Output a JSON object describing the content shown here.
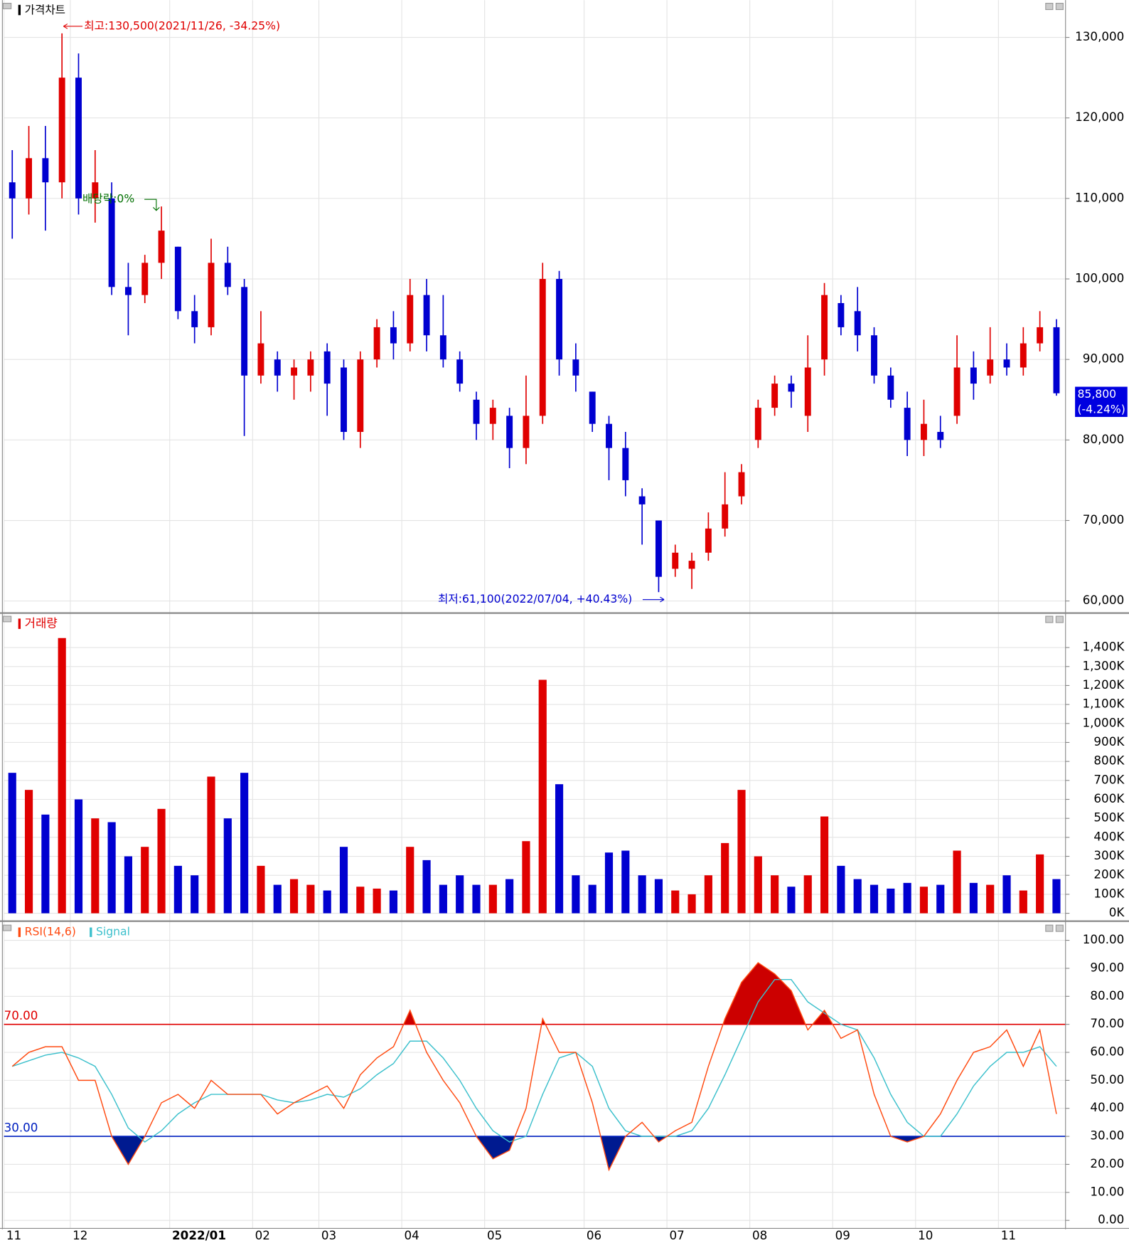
{
  "chart_data": [
    {
      "type": "candlestick",
      "title": "가격차트",
      "open": [
        112000,
        110000,
        115000,
        112000,
        125000,
        110000,
        110000,
        99000,
        98000,
        102000,
        104000,
        96000,
        94000,
        102000,
        99000,
        88000,
        90000,
        88000,
        88000,
        91000,
        89000,
        81000,
        90000,
        94000,
        92000,
        98000,
        93000,
        90000,
        85000,
        82000,
        83000,
        79000,
        83000,
        100000,
        90000,
        86000,
        82000,
        79000,
        73000,
        70000,
        64000,
        64000,
        66000,
        69000,
        73000,
        80000,
        84000,
        87000,
        83000,
        90000,
        97000,
        96000,
        93000,
        88000,
        84000,
        80000,
        81000,
        83000,
        89000,
        88000,
        90000,
        89000,
        92000,
        94000
      ],
      "high": [
        116000,
        119000,
        119000,
        130500,
        128000,
        116000,
        112000,
        102000,
        103000,
        109000,
        104000,
        98000,
        105000,
        104000,
        100000,
        96000,
        91000,
        90000,
        91000,
        92000,
        90000,
        91000,
        95000,
        96000,
        100000,
        100000,
        98000,
        91000,
        86000,
        85000,
        84000,
        88000,
        102000,
        101000,
        92000,
        86000,
        83000,
        81000,
        74000,
        70000,
        67000,
        66000,
        71000,
        76000,
        77000,
        85000,
        88000,
        88000,
        93000,
        99500,
        98000,
        99000,
        94000,
        89000,
        86000,
        85000,
        83000,
        93000,
        91000,
        94000,
        92000,
        94000,
        96000,
        95000
      ],
      "low": [
        105000,
        108000,
        106000,
        110000,
        108000,
        107000,
        98000,
        93000,
        97000,
        100000,
        95000,
        92000,
        93000,
        98000,
        80500,
        87000,
        86000,
        85000,
        86000,
        83000,
        80000,
        79000,
        89000,
        90000,
        91000,
        91000,
        89000,
        86000,
        80000,
        80000,
        76500,
        77000,
        82000,
        88000,
        86000,
        81000,
        75000,
        73000,
        67000,
        61100,
        63000,
        61500,
        65000,
        68000,
        72000,
        79000,
        83000,
        84000,
        81000,
        88000,
        93000,
        91000,
        87000,
        84000,
        78000,
        78000,
        79000,
        82000,
        85000,
        87000,
        88000,
        88000,
        91000,
        85500
      ],
      "close": [
        110000,
        115000,
        112000,
        125000,
        110000,
        112000,
        99000,
        98000,
        102000,
        106000,
        96000,
        94000,
        102000,
        99000,
        88000,
        92000,
        88000,
        89000,
        90000,
        87000,
        81000,
        90000,
        94000,
        92000,
        98000,
        93000,
        90000,
        87000,
        82000,
        84000,
        79000,
        83000,
        100000,
        90000,
        88000,
        82000,
        79000,
        75000,
        72000,
        63000,
        66000,
        65000,
        69000,
        72000,
        76000,
        84000,
        87000,
        86000,
        89000,
        98000,
        94000,
        93000,
        88000,
        85000,
        80000,
        82000,
        80000,
        89000,
        87000,
        90000,
        89000,
        92000,
        94000,
        85800
      ],
      "up_color": "#e00000",
      "down_color": "#0000d0",
      "ylim": [
        58700,
        134340
      ],
      "yticks": [
        {
          "value": 60000,
          "label": "60,000"
        },
        {
          "value": 70000,
          "label": "70,000"
        },
        {
          "value": 80000,
          "label": "80,000"
        },
        {
          "value": 90000,
          "label": "90,000"
        },
        {
          "value": 100000,
          "label": "100,000"
        },
        {
          "value": 110000,
          "label": "110,000"
        },
        {
          "value": 120000,
          "label": "120,000"
        },
        {
          "value": 130000,
          "label": "130,000"
        }
      ],
      "xticks": [
        {
          "value": 0,
          "label": "11"
        },
        {
          "value": 4,
          "label": "12"
        },
        {
          "value": 10,
          "label": "2022/01",
          "bold": true
        },
        {
          "value": 15,
          "label": "02"
        },
        {
          "value": 19,
          "label": "03"
        },
        {
          "value": 24,
          "label": "04"
        },
        {
          "value": 29,
          "label": "05"
        },
        {
          "value": 35,
          "label": "06"
        },
        {
          "value": 40,
          "label": "07"
        },
        {
          "value": 45,
          "label": "08"
        },
        {
          "value": 50,
          "label": "09"
        },
        {
          "value": 55,
          "label": "10"
        },
        {
          "value": 60,
          "label": "11"
        }
      ],
      "grid": true,
      "high_label": "최고:130,500(2021/11/26, -34.25%)",
      "low_label": "최저:61,100(2022/07/04, +40.43%)",
      "dividend_label": "배당락:0%",
      "last_price_label": "85,800",
      "last_change_label": "(-4.24%)"
    },
    {
      "type": "bar",
      "title": "거래량",
      "values": [
        740,
        650,
        520,
        1450,
        600,
        500,
        480,
        300,
        350,
        550,
        250,
        200,
        720,
        500,
        740,
        250,
        150,
        180,
        150,
        120,
        350,
        140,
        130,
        120,
        350,
        280,
        150,
        200,
        150,
        150,
        180,
        380,
        1230,
        680,
        200,
        150,
        320,
        330,
        200,
        180,
        120,
        100,
        200,
        370,
        650,
        300,
        200,
        140,
        200,
        510,
        250,
        180,
        150,
        130,
        160,
        140,
        150,
        330,
        160,
        150,
        200,
        120,
        310,
        180
      ],
      "ylim": [
        -33,
        1565
      ],
      "yticks": [
        {
          "value": 0,
          "label": "0K"
        },
        {
          "value": 100,
          "label": "100K"
        },
        {
          "value": 200,
          "label": "200K"
        },
        {
          "value": 300,
          "label": "300K"
        },
        {
          "value": 400,
          "label": "400K"
        },
        {
          "value": 500,
          "label": "500K"
        },
        {
          "value": 600,
          "label": "600K"
        },
        {
          "value": 700,
          "label": "700K"
        },
        {
          "value": 800,
          "label": "800K"
        },
        {
          "value": 900,
          "label": "900K"
        },
        {
          "value": 1000,
          "label": "1,000K"
        },
        {
          "value": 1100,
          "label": "1,100K"
        },
        {
          "value": 1200,
          "label": "1,200K"
        },
        {
          "value": 1300,
          "label": "1,300K"
        },
        {
          "value": 1400,
          "label": "1,400K"
        }
      ]
    },
    {
      "type": "line",
      "series": [
        {
          "name": "RSI(14,6)",
          "color": "#ff4a10",
          "values": [
            55,
            60,
            62,
            62,
            50,
            50,
            30,
            20,
            30,
            42,
            45,
            40,
            50,
            45,
            45,
            45,
            38,
            42,
            45,
            48,
            40,
            52,
            58,
            62,
            75,
            60,
            50,
            42,
            30,
            22,
            25,
            40,
            72,
            60,
            60,
            42,
            18,
            30,
            35,
            28,
            32,
            35,
            55,
            72,
            85,
            92,
            88,
            82,
            68,
            75,
            65,
            68,
            45,
            30,
            28,
            30,
            38,
            50,
            60,
            62,
            68,
            55,
            68,
            38
          ]
        },
        {
          "name": "Signal",
          "color": "#3cc0cc",
          "values": [
            55,
            57,
            59,
            60,
            58,
            55,
            45,
            33,
            28,
            32,
            38,
            42,
            45,
            45,
            45,
            45,
            43,
            42,
            43,
            45,
            44,
            47,
            52,
            56,
            64,
            64,
            58,
            50,
            40,
            32,
            28,
            30,
            45,
            58,
            60,
            55,
            40,
            32,
            30,
            30,
            30,
            32,
            40,
            52,
            65,
            78,
            86,
            86,
            78,
            74,
            70,
            68,
            58,
            45,
            35,
            30,
            30,
            38,
            48,
            55,
            60,
            60,
            62,
            55
          ]
        }
      ],
      "ylim": [
        -2.3,
        106
      ],
      "yticks": [
        {
          "value": 0,
          "label": "0.00"
        },
        {
          "value": 10,
          "label": "10.00"
        },
        {
          "value": 20,
          "label": "20.00"
        },
        {
          "value": 30,
          "label": "30.00"
        },
        {
          "value": 40,
          "label": "40.00"
        },
        {
          "value": 50,
          "label": "50.00"
        },
        {
          "value": 60,
          "label": "60.00"
        },
        {
          "value": 70,
          "label": "70.00"
        },
        {
          "value": 80,
          "label": "80.00"
        },
        {
          "value": 90,
          "label": "90.00"
        },
        {
          "value": 100,
          "label": "100.00"
        }
      ],
      "reference_lines": [
        {
          "value": 70,
          "label": "70.00",
          "color": "#e00000",
          "fill": "#cc0000"
        },
        {
          "value": 30,
          "label": "30.00",
          "color": "#0020c0",
          "fill": "#001a90"
        }
      ]
    }
  ]
}
